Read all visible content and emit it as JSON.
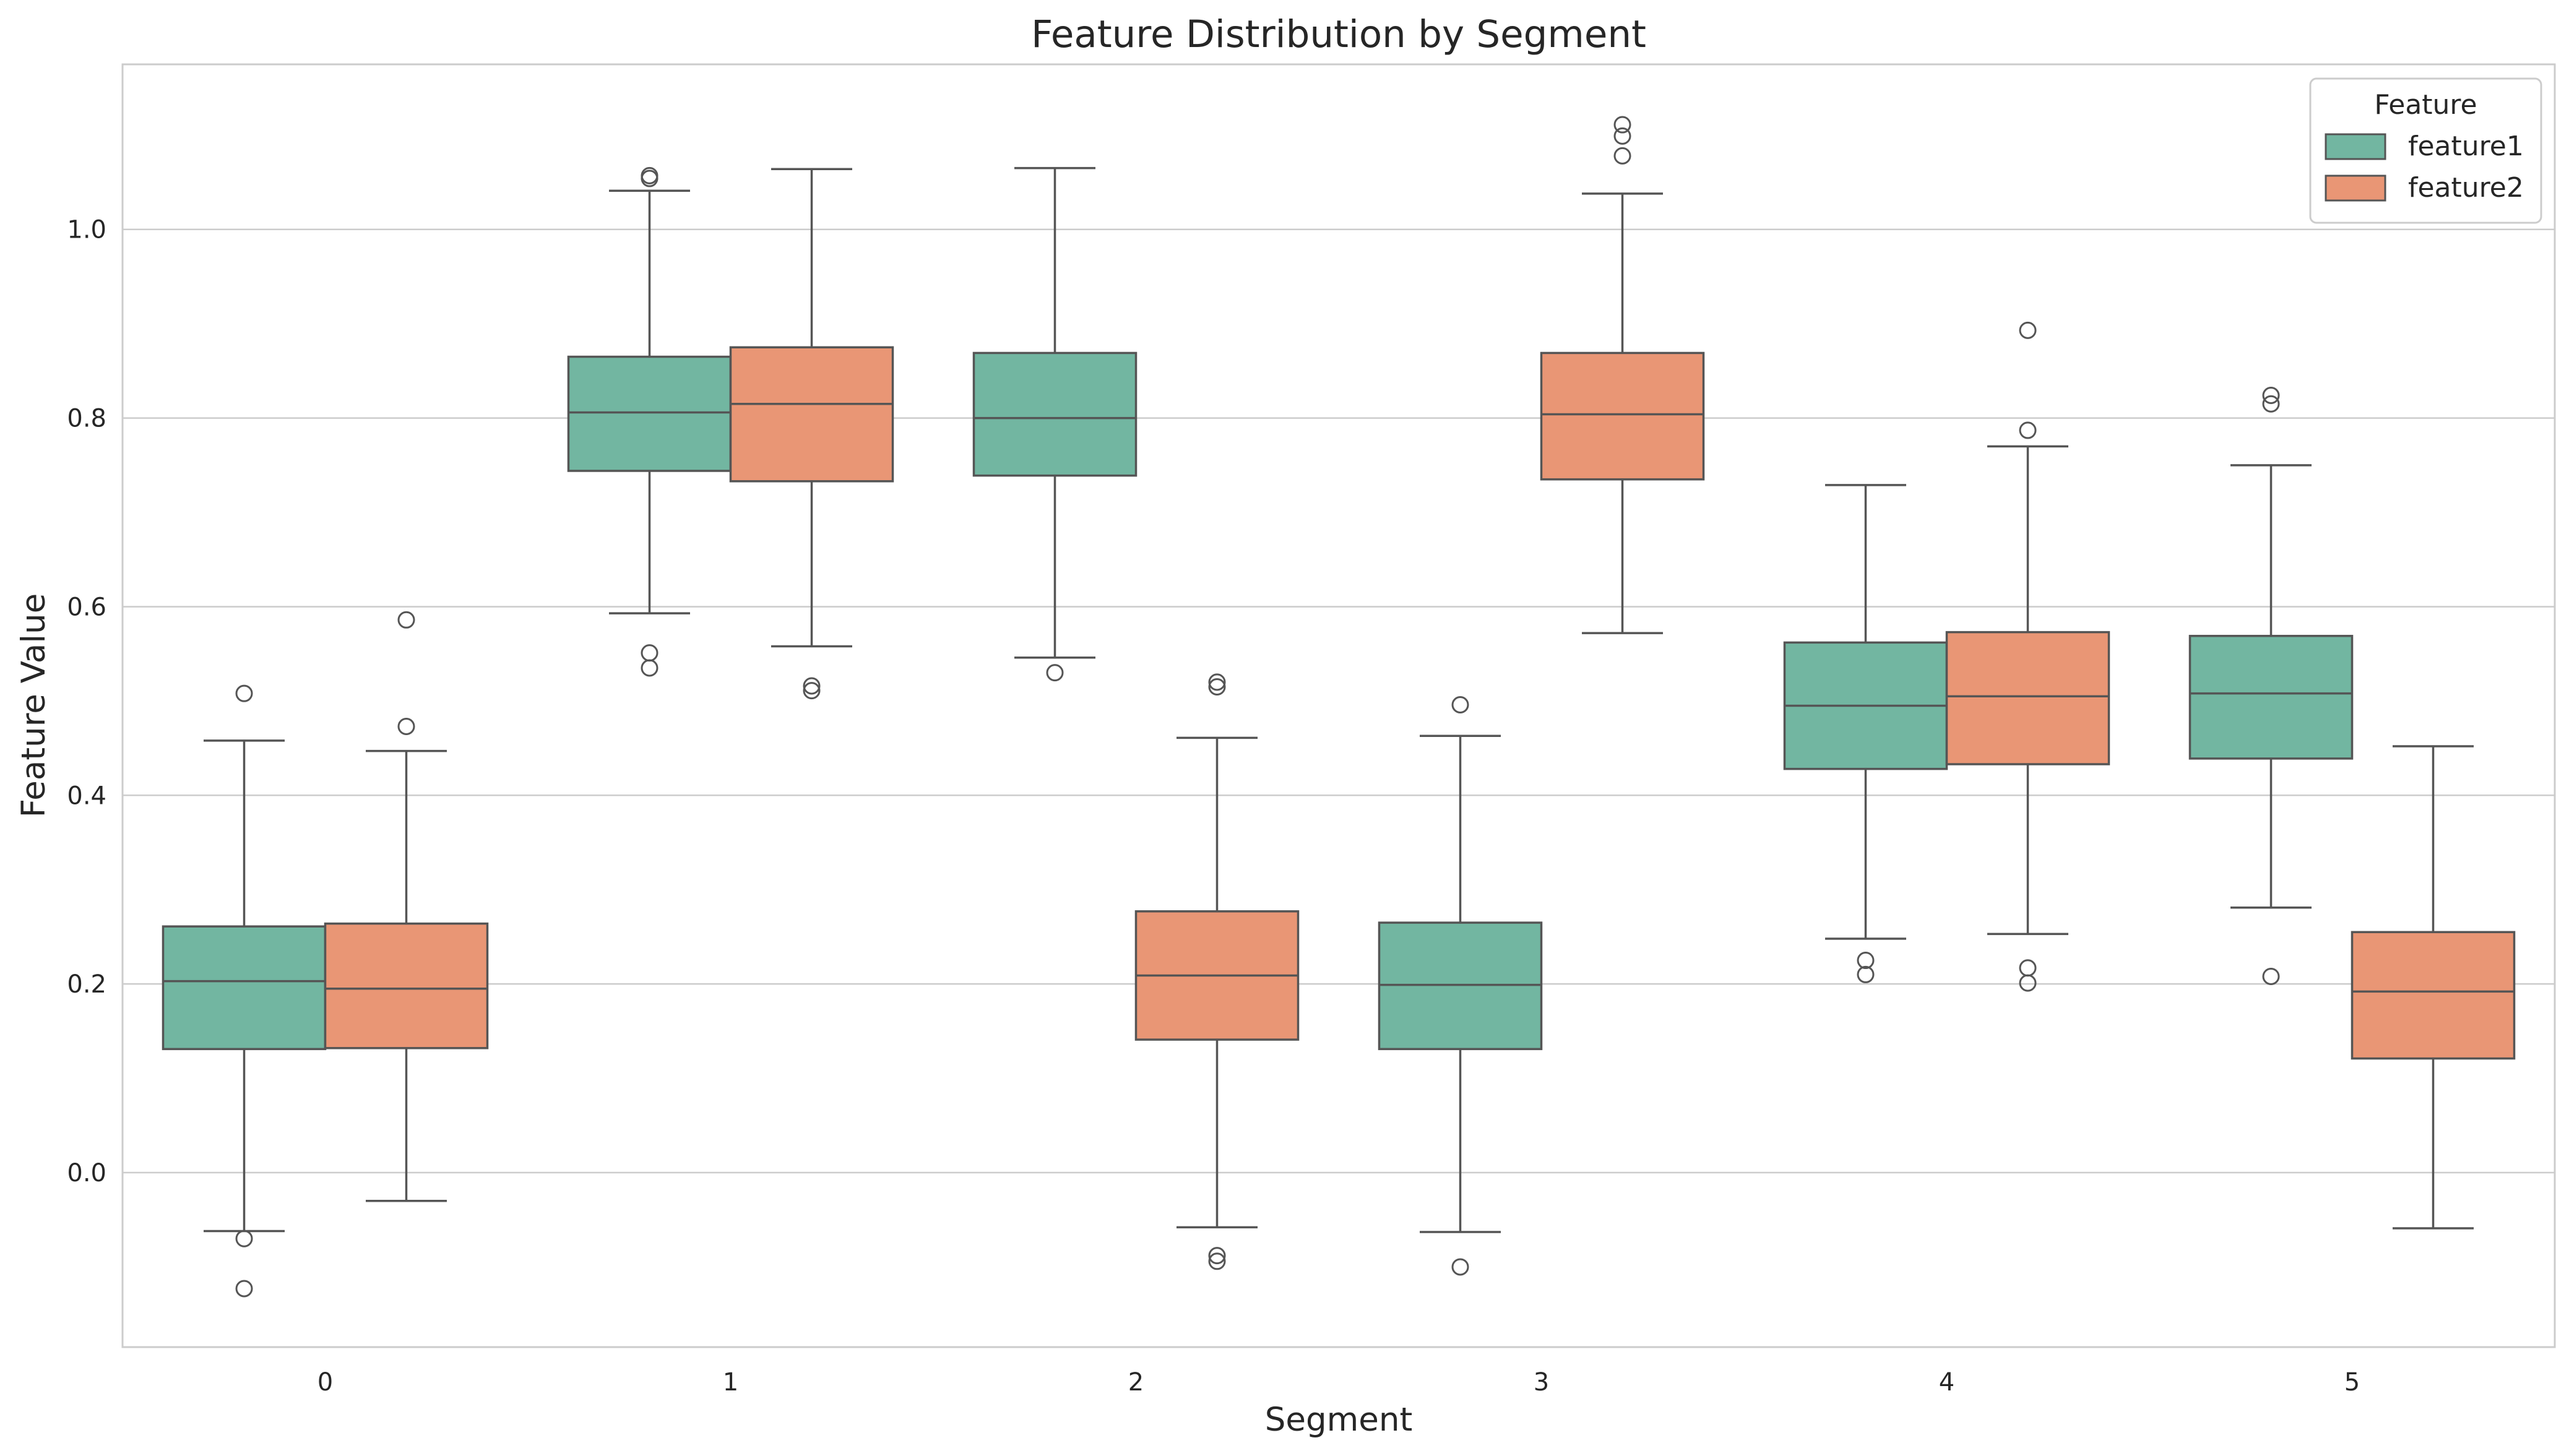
{
  "chart_data": {
    "type": "box",
    "title": "Feature Distribution by Segment",
    "xlabel": "Segment",
    "ylabel": "Feature Value",
    "ylim": [
      -0.185,
      1.175
    ],
    "yticks": [
      0.0,
      0.2,
      0.4,
      0.6,
      0.8,
      1.0
    ],
    "ytick_labels": [
      "0.0",
      "0.2",
      "0.4",
      "0.6",
      "0.8",
      "1.0"
    ],
    "categories": [
      "0",
      "1",
      "2",
      "3",
      "4",
      "5"
    ],
    "grid": true,
    "legend": {
      "title": "Feature",
      "position": "top-right"
    },
    "series": [
      {
        "name": "feature1",
        "color": "#72b6a1",
        "boxes": [
          {
            "segment": "0",
            "whisker_low": -0.062,
            "q1": 0.131,
            "median": 0.203,
            "q3": 0.261,
            "whisker_high": 0.458,
            "outliers": [
              0.508,
              -0.07,
              -0.123
            ]
          },
          {
            "segment": "1",
            "whisker_low": 0.593,
            "q1": 0.744,
            "median": 0.806,
            "q3": 0.865,
            "whisker_high": 1.041,
            "outliers": [
              1.054,
              1.057,
              0.551,
              0.535
            ]
          },
          {
            "segment": "2",
            "whisker_low": 0.546,
            "q1": 0.739,
            "median": 0.8,
            "q3": 0.869,
            "whisker_high": 1.065,
            "outliers": [
              0.53
            ]
          },
          {
            "segment": "3",
            "whisker_low": -0.063,
            "q1": 0.131,
            "median": 0.199,
            "q3": 0.265,
            "whisker_high": 0.463,
            "outliers": [
              0.496,
              -0.1
            ]
          },
          {
            "segment": "4",
            "whisker_low": 0.248,
            "q1": 0.428,
            "median": 0.495,
            "q3": 0.562,
            "whisker_high": 0.729,
            "outliers": [
              0.225,
              0.21
            ]
          },
          {
            "segment": "5",
            "whisker_low": 0.281,
            "q1": 0.439,
            "median": 0.508,
            "q3": 0.569,
            "whisker_high": 0.75,
            "outliers": [
              0.824,
              0.815,
              0.208
            ]
          }
        ]
      },
      {
        "name": "feature2",
        "color": "#e99675",
        "boxes": [
          {
            "segment": "0",
            "whisker_low": -0.03,
            "q1": 0.132,
            "median": 0.195,
            "q3": 0.264,
            "whisker_high": 0.447,
            "outliers": [
              0.586,
              0.473
            ]
          },
          {
            "segment": "1",
            "whisker_low": 0.558,
            "q1": 0.733,
            "median": 0.815,
            "q3": 0.875,
            "whisker_high": 1.064,
            "outliers": [
              0.516,
              0.511
            ]
          },
          {
            "segment": "2",
            "whisker_low": -0.058,
            "q1": 0.141,
            "median": 0.209,
            "q3": 0.277,
            "whisker_high": 0.461,
            "outliers": [
              0.52,
              0.515,
              -0.088,
              -0.094
            ]
          },
          {
            "segment": "3",
            "whisker_low": 0.572,
            "q1": 0.735,
            "median": 0.804,
            "q3": 0.869,
            "whisker_high": 1.038,
            "outliers": [
              1.111,
              1.099,
              1.078
            ]
          },
          {
            "segment": "4",
            "whisker_low": 0.253,
            "q1": 0.433,
            "median": 0.505,
            "q3": 0.573,
            "whisker_high": 0.77,
            "outliers": [
              0.893,
              0.787,
              0.217,
              0.201
            ]
          },
          {
            "segment": "5",
            "whisker_low": -0.059,
            "q1": 0.121,
            "median": 0.192,
            "q3": 0.255,
            "whisker_high": 0.452,
            "outliers": []
          }
        ]
      }
    ]
  }
}
